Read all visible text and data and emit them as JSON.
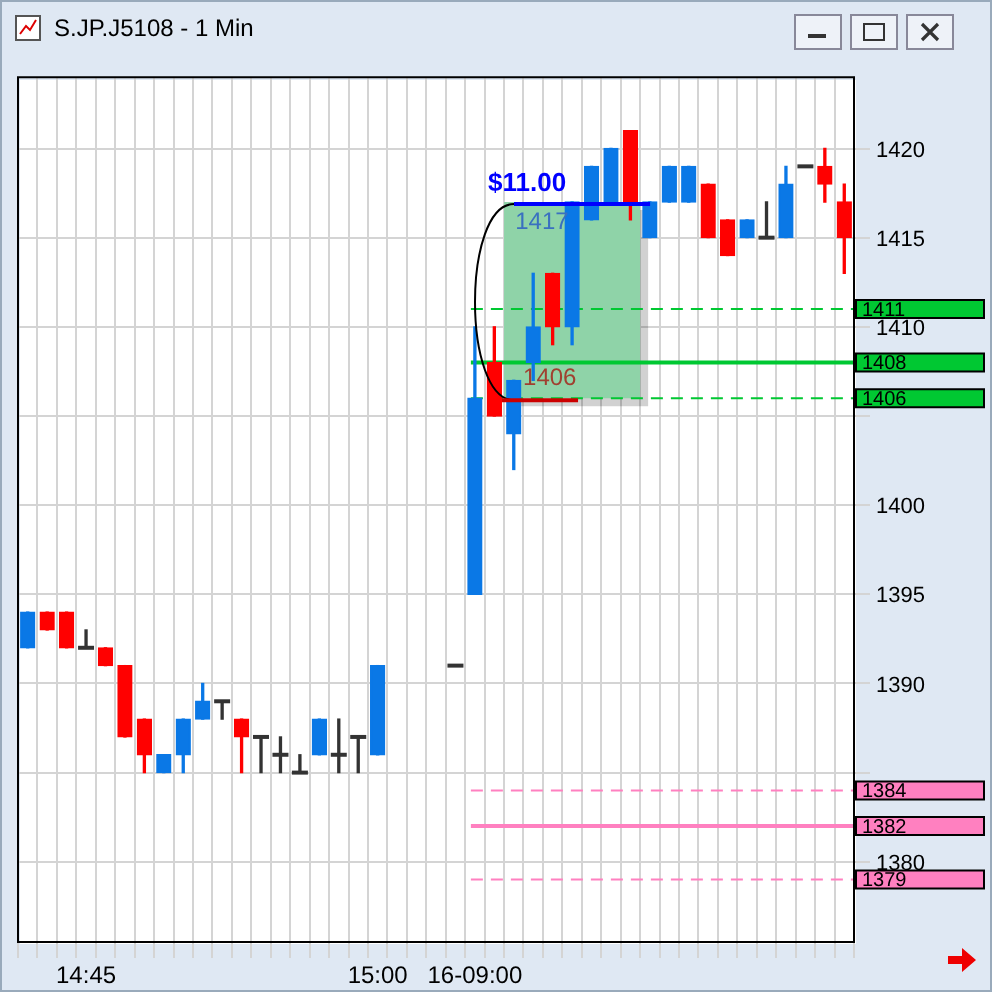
{
  "chart_data": {
    "type": "candlestick",
    "title": "S.JP.J5108 - 1 Min",
    "categories": [
      null,
      null,
      null,
      "14:45",
      null,
      null,
      null,
      null,
      null,
      null,
      null,
      null,
      null,
      null,
      null,
      null,
      null,
      null,
      "15:00",
      null,
      null,
      null,
      null,
      "16-09:00",
      null,
      null,
      null,
      null,
      null,
      null,
      null,
      null,
      null,
      null,
      null,
      null,
      null,
      null,
      null,
      null,
      null,
      null,
      null
    ],
    "ohlc": [
      [
        1392,
        1394,
        1392,
        1394
      ],
      [
        1394,
        1394,
        1393,
        1393
      ],
      [
        1394,
        1394,
        1392,
        1392
      ],
      [
        1392,
        1393,
        1392,
        1392
      ],
      [
        1392,
        1392,
        1391,
        1391
      ],
      [
        1391,
        1391,
        1387,
        1387
      ],
      [
        1388,
        1388,
        1385,
        1386
      ],
      [
        1385,
        1386,
        1385,
        1386
      ],
      [
        1386,
        1388,
        1385,
        1388
      ],
      [
        1388,
        1390,
        1388,
        1389
      ],
      [
        1389,
        1389,
        1388,
        1389
      ],
      [
        1388,
        1388,
        1385,
        1387
      ],
      [
        1387,
        1387,
        1385,
        1387
      ],
      [
        1386,
        1387,
        1385,
        1386
      ],
      [
        1385,
        1386,
        1385,
        1385
      ],
      [
        1386,
        1388,
        1386,
        1388
      ],
      [
        1386,
        1388,
        1385,
        1386
      ],
      [
        1387,
        1387,
        1385,
        1387
      ],
      [
        1386,
        1391,
        1386,
        1391
      ],
      null,
      null,
      null,
      [
        1391,
        1391,
        1391,
        1391
      ],
      [
        1395,
        1410,
        1395,
        1406
      ],
      [
        1408,
        1410,
        1405,
        1405
      ],
      [
        1404,
        1407,
        1402,
        1407
      ],
      [
        1408,
        1413,
        1407,
        1410
      ],
      [
        1413,
        1413,
        1409,
        1410
      ],
      [
        1410,
        1417,
        1409,
        1417
      ],
      [
        1416,
        1419,
        1416,
        1419
      ],
      [
        1417,
        1420,
        1417,
        1420
      ],
      [
        1421,
        1421,
        1416,
        1417
      ],
      [
        1415,
        1417,
        1415,
        1417
      ],
      [
        1417,
        1419,
        1417,
        1419
      ],
      [
        1417,
        1419,
        1417,
        1419
      ],
      [
        1418,
        1418,
        1415,
        1415
      ],
      [
        1416,
        1416,
        1414,
        1414
      ],
      [
        1415,
        1416,
        1415,
        1416
      ],
      [
        1415,
        1417,
        1415,
        1415
      ],
      [
        1415,
        1419,
        1415,
        1418
      ],
      [
        1419,
        1419,
        1419,
        1419
      ],
      [
        1419,
        1420,
        1417,
        1418
      ],
      [
        1417,
        1418,
        1413,
        1415
      ]
    ],
    "colors": [
      "#0a78e6",
      "#ff0000",
      "#ff0000",
      "#333333",
      "#ff0000",
      "#ff0000",
      "#ff0000",
      "#0a78e6",
      "#0a78e6",
      "#0a78e6",
      "#333333",
      "#ff0000",
      "#333333",
      "#333333",
      "#333333",
      "#0a78e6",
      "#333333",
      "#333333",
      "#0a78e6",
      null,
      null,
      null,
      "#333333",
      "#0a78e6",
      "#ff0000",
      "#0a78e6",
      "#0a78e6",
      "#ff0000",
      "#0a78e6",
      "#0a78e6",
      "#0a78e6",
      "#ff0000",
      "#0a78e6",
      "#0a78e6",
      "#0a78e6",
      "#ff0000",
      "#ff0000",
      "#0a78e6",
      "#333333",
      "#0a78e6",
      "#333333",
      "#ff0000",
      "#ff0000"
    ],
    "ylim": [
      1375.5,
      1424
    ],
    "yticks": [
      1380,
      {
        "value": 1385,
        "label": null
      },
      1390,
      1395,
      1400,
      {
        "value": 1405,
        "label": null
      },
      1410,
      1415,
      1420
    ],
    "grid": true,
    "ref_lines": [
      {
        "axis": "y",
        "value": 1411,
        "label": "1411",
        "color": "#00c832",
        "line_style": "dashed"
      },
      {
        "axis": "y",
        "value": 1408,
        "label": "1408",
        "color": "#00c832",
        "line_style": "solid"
      },
      {
        "axis": "y",
        "value": 1406,
        "label": "1406",
        "color": "#00c832",
        "line_style": "dashed"
      },
      {
        "axis": "y",
        "value": 1384,
        "label": "1384",
        "color": "#ff80c0",
        "line_style": "dashed"
      },
      {
        "axis": "y",
        "value": 1382,
        "label": "1382",
        "color": "#ff80c0",
        "line_style": "solid"
      },
      {
        "axis": "y",
        "value": 1379,
        "label": "1379",
        "color": "#ff80c0",
        "line_style": "dashed"
      }
    ],
    "bands": [
      {
        "axis": "y",
        "from": 1406,
        "to": 1417,
        "color": "#8fd3a8"
      }
    ],
    "annotations": [
      {
        "text": "$11.00",
        "y": 1417
      },
      {
        "text": "1417",
        "y": 1417
      },
      {
        "text": "1406",
        "y": 1406
      }
    ]
  }
}
